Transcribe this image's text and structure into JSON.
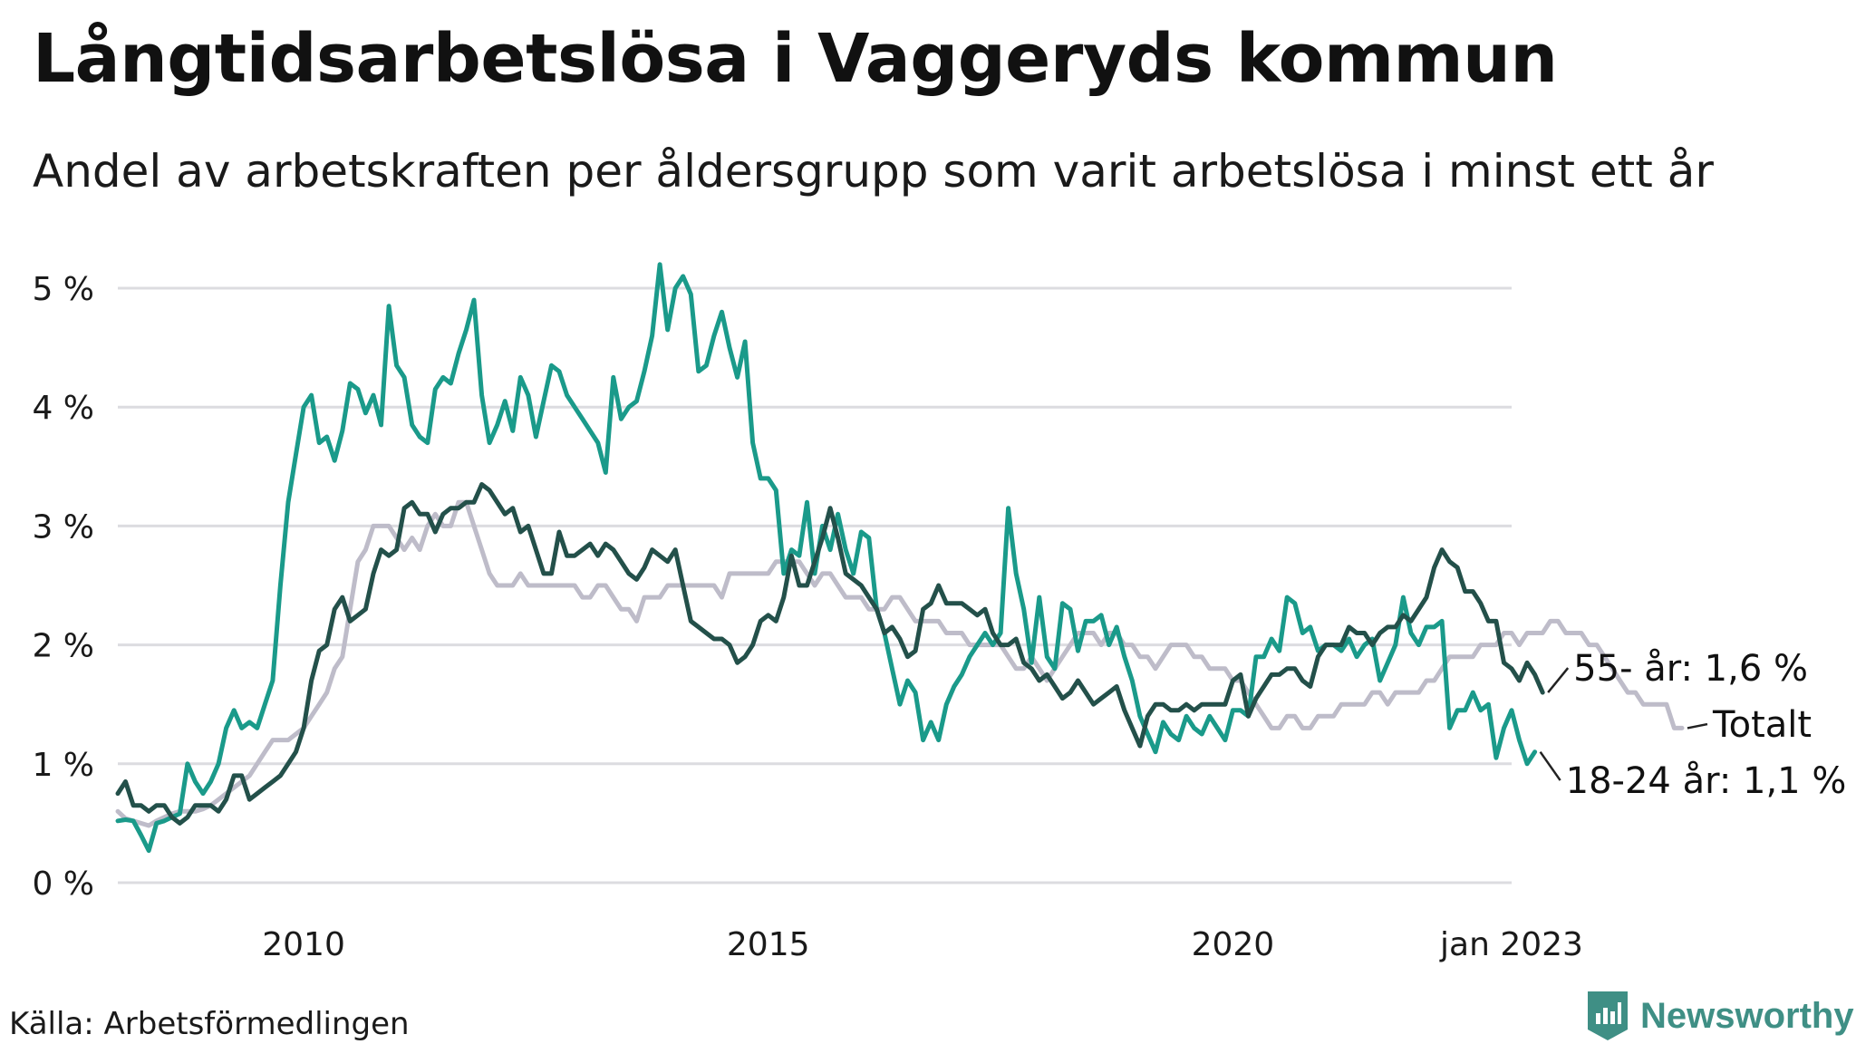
{
  "page": {
    "title": "Långtidsarbetslösa i Vaggeryds kommun",
    "subtitle": "Andel av arbetskraften per åldersgrupp som varit arbetslösa i minst ett år",
    "source": "Källa: Arbetsförmedlingen",
    "brand": "Newsworthy",
    "brand_color": "#3f8f85"
  },
  "chart_data": {
    "type": "line",
    "title": "",
    "xlabel": "",
    "ylabel": "",
    "x_start": "2008-01",
    "x_step": "month",
    "xlim": [
      "2008-01",
      "2023-01"
    ],
    "ylim": [
      0,
      5
    ],
    "grid": true,
    "y_ticks": [
      {
        "value": 0,
        "label": "0 %"
      },
      {
        "value": 1,
        "label": "1 %"
      },
      {
        "value": 2,
        "label": "2 %"
      },
      {
        "value": 3,
        "label": "3 %"
      },
      {
        "value": 4,
        "label": "4 %"
      },
      {
        "value": 5,
        "label": "5 %"
      }
    ],
    "x_ticks": [
      {
        "value": "2010-01",
        "label": "2010"
      },
      {
        "value": "2015-01",
        "label": "2015"
      },
      {
        "value": "2020-01",
        "label": "2020"
      },
      {
        "value": "2023-01",
        "label": "jan 2023"
      }
    ],
    "series": [
      {
        "name": "Totalt",
        "label": "Totalt",
        "color": "#bebcc9",
        "values": [
          0.6,
          0.54,
          0.52,
          0.5,
          0.48,
          0.52,
          0.55,
          0.58,
          0.6,
          0.6,
          0.6,
          0.62,
          0.65,
          0.7,
          0.75,
          0.8,
          0.85,
          0.9,
          1.0,
          1.1,
          1.2,
          1.2,
          1.2,
          1.25,
          1.3,
          1.4,
          1.5,
          1.6,
          1.8,
          1.9,
          2.3,
          2.7,
          2.8,
          3.0,
          3.0,
          3.0,
          2.9,
          2.8,
          2.9,
          2.8,
          3.0,
          3.1,
          3.0,
          3.0,
          3.2,
          3.2,
          3.0,
          2.8,
          2.6,
          2.5,
          2.5,
          2.5,
          2.6,
          2.5,
          2.5,
          2.5,
          2.5,
          2.5,
          2.5,
          2.5,
          2.4,
          2.4,
          2.5,
          2.5,
          2.4,
          2.3,
          2.3,
          2.2,
          2.4,
          2.4,
          2.4,
          2.5,
          2.5,
          2.5,
          2.5,
          2.5,
          2.5,
          2.5,
          2.4,
          2.6,
          2.6,
          2.6,
          2.6,
          2.6,
          2.6,
          2.7,
          2.7,
          2.7,
          2.7,
          2.6,
          2.5,
          2.6,
          2.6,
          2.5,
          2.4,
          2.4,
          2.4,
          2.3,
          2.3,
          2.3,
          2.4,
          2.4,
          2.3,
          2.2,
          2.2,
          2.2,
          2.2,
          2.1,
          2.1,
          2.1,
          2.0,
          2.0,
          2.0,
          2.0,
          2.0,
          1.9,
          1.8,
          1.8,
          1.9,
          1.8,
          1.7,
          1.8,
          1.9,
          2.0,
          2.1,
          2.1,
          2.1,
          2.0,
          2.1,
          2.1,
          2.0,
          2.0,
          1.9,
          1.9,
          1.8,
          1.9,
          2.0,
          2.0,
          2.0,
          1.9,
          1.9,
          1.8,
          1.8,
          1.8,
          1.7,
          1.7,
          1.6,
          1.5,
          1.4,
          1.3,
          1.3,
          1.4,
          1.4,
          1.3,
          1.3,
          1.4,
          1.4,
          1.4,
          1.5,
          1.5,
          1.5,
          1.5,
          1.6,
          1.6,
          1.5,
          1.6,
          1.6,
          1.6,
          1.6,
          1.7,
          1.7,
          1.8,
          1.9,
          1.9,
          1.9,
          1.9,
          2.0,
          2.0,
          2.0,
          2.1,
          2.1,
          2.0,
          2.1,
          2.1,
          2.1,
          2.2,
          2.2,
          2.1,
          2.1,
          2.1,
          2.0,
          2.0,
          1.9,
          1.8,
          1.7,
          1.6,
          1.6,
          1.5,
          1.5,
          1.5,
          1.5,
          1.3,
          1.3
        ]
      },
      {
        "name": "18-24 år",
        "label": "18-24 år: 1,1 %",
        "color": "#1a9a8a",
        "values": [
          0.52,
          0.53,
          0.52,
          0.4,
          0.27,
          0.5,
          0.52,
          0.55,
          0.58,
          1.0,
          0.85,
          0.75,
          0.85,
          1.0,
          1.3,
          1.45,
          1.3,
          1.35,
          1.3,
          1.5,
          1.7,
          2.5,
          3.2,
          3.6,
          4.0,
          4.1,
          3.7,
          3.75,
          3.55,
          3.8,
          4.2,
          4.15,
          3.95,
          4.1,
          3.85,
          4.85,
          4.35,
          4.25,
          3.85,
          3.75,
          3.7,
          4.15,
          4.25,
          4.2,
          4.45,
          4.65,
          4.9,
          4.1,
          3.7,
          3.85,
          4.05,
          3.8,
          4.25,
          4.1,
          3.75,
          4.05,
          4.35,
          4.3,
          4.1,
          4.0,
          3.9,
          3.8,
          3.7,
          3.45,
          4.25,
          3.9,
          4.0,
          4.05,
          4.3,
          4.6,
          5.2,
          4.65,
          5.0,
          5.1,
          4.95,
          4.3,
          4.35,
          4.6,
          4.8,
          4.5,
          4.25,
          4.55,
          3.7,
          3.4,
          3.4,
          3.3,
          2.6,
          2.8,
          2.75,
          3.2,
          2.6,
          3.0,
          2.8,
          3.1,
          2.8,
          2.6,
          2.95,
          2.9,
          2.3,
          2.1,
          1.8,
          1.5,
          1.7,
          1.6,
          1.2,
          1.35,
          1.2,
          1.5,
          1.65,
          1.75,
          1.9,
          2.0,
          2.1,
          2.0,
          2.1,
          3.15,
          2.6,
          2.3,
          1.85,
          2.4,
          1.9,
          1.8,
          2.35,
          2.3,
          1.95,
          2.2,
          2.2,
          2.25,
          2.0,
          2.15,
          1.9,
          1.7,
          1.4,
          1.25,
          1.1,
          1.35,
          1.25,
          1.2,
          1.4,
          1.3,
          1.25,
          1.4,
          1.3,
          1.2,
          1.45,
          1.45,
          1.4,
          1.9,
          1.9,
          2.05,
          1.95,
          2.4,
          2.35,
          2.1,
          2.15,
          1.95,
          2.0,
          2.0,
          1.95,
          2.05,
          1.9,
          2.0,
          2.05,
          1.7,
          1.85,
          2.0,
          2.4,
          2.1,
          2.0,
          2.15,
          2.15,
          2.2,
          1.3,
          1.45,
          1.45,
          1.6,
          1.45,
          1.5,
          1.05,
          1.3,
          1.45,
          1.2,
          1.0,
          1.1
        ]
      },
      {
        "name": "55- år",
        "label": "55- år: 1,6 %",
        "color": "#23504a",
        "values": [
          0.75,
          0.85,
          0.65,
          0.65,
          0.6,
          0.65,
          0.65,
          0.55,
          0.5,
          0.55,
          0.65,
          0.65,
          0.65,
          0.6,
          0.7,
          0.9,
          0.9,
          0.7,
          0.75,
          0.8,
          0.85,
          0.9,
          1.0,
          1.1,
          1.3,
          1.7,
          1.95,
          2.0,
          2.3,
          2.4,
          2.2,
          2.25,
          2.3,
          2.6,
          2.8,
          2.75,
          2.8,
          3.15,
          3.2,
          3.1,
          3.1,
          2.95,
          3.1,
          3.15,
          3.15,
          3.2,
          3.2,
          3.35,
          3.3,
          3.2,
          3.1,
          3.15,
          2.95,
          3.0,
          2.8,
          2.6,
          2.6,
          2.95,
          2.75,
          2.75,
          2.8,
          2.85,
          2.75,
          2.85,
          2.8,
          2.7,
          2.6,
          2.55,
          2.65,
          2.8,
          2.75,
          2.7,
          2.8,
          2.5,
          2.2,
          2.15,
          2.1,
          2.05,
          2.05,
          2.0,
          1.85,
          1.9,
          2.0,
          2.2,
          2.25,
          2.2,
          2.4,
          2.75,
          2.5,
          2.5,
          2.7,
          2.9,
          3.15,
          2.9,
          2.6,
          2.55,
          2.5,
          2.4,
          2.3,
          2.1,
          2.15,
          2.05,
          1.9,
          1.95,
          2.3,
          2.35,
          2.5,
          2.35,
          2.35,
          2.35,
          2.3,
          2.25,
          2.3,
          2.1,
          2.0,
          2.0,
          2.05,
          1.85,
          1.8,
          1.7,
          1.75,
          1.65,
          1.55,
          1.6,
          1.7,
          1.6,
          1.5,
          1.55,
          1.6,
          1.65,
          1.45,
          1.3,
          1.15,
          1.4,
          1.5,
          1.5,
          1.45,
          1.45,
          1.5,
          1.45,
          1.5,
          1.5,
          1.5,
          1.5,
          1.7,
          1.75,
          1.4,
          1.55,
          1.65,
          1.75,
          1.75,
          1.8,
          1.8,
          1.7,
          1.65,
          1.9,
          2.0,
          2.0,
          2.0,
          2.15,
          2.1,
          2.1,
          2.0,
          2.1,
          2.15,
          2.15,
          2.25,
          2.2,
          2.3,
          2.4,
          2.65,
          2.8,
          2.7,
          2.65,
          2.45,
          2.45,
          2.35,
          2.2,
          2.2,
          1.85,
          1.8,
          1.7,
          1.85,
          1.75,
          1.6
        ]
      }
    ]
  }
}
